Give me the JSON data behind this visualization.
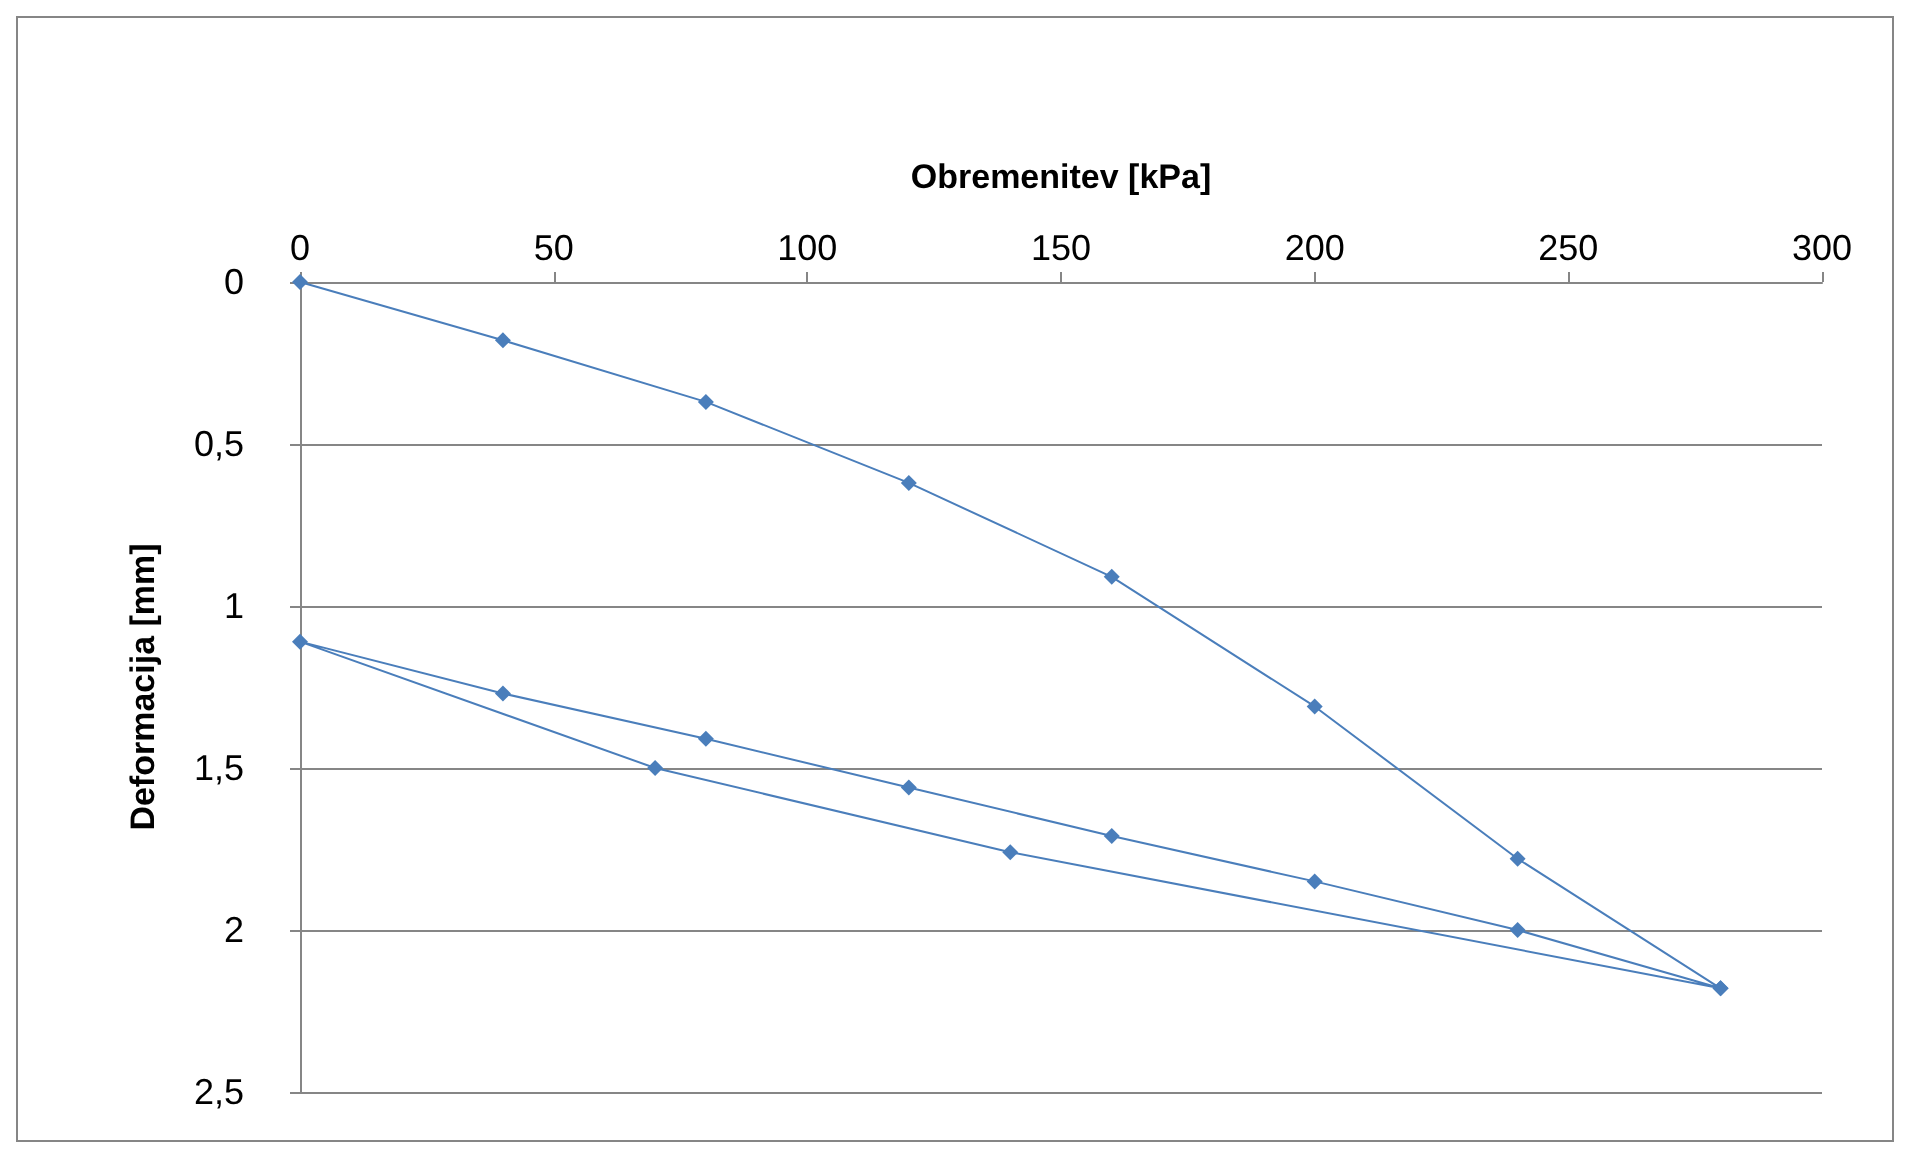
{
  "chart_data": {
    "type": "line",
    "xlabel": "Obremenitev [kPa]",
    "ylabel": "Deformacija [mm]",
    "x": [
      0,
      40,
      80,
      120,
      160,
      200,
      240,
      280,
      240,
      200,
      160,
      120,
      80,
      40,
      0,
      70,
      140,
      280
    ],
    "series": [
      {
        "color": "#4a7ebb",
        "values": [
          0,
          0.18,
          0.37,
          0.62,
          0.91,
          1.31,
          1.78,
          2.18,
          2.0,
          1.85,
          1.71,
          1.56,
          1.41,
          1.27,
          1.11,
          1.5,
          1.76,
          2.18
        ]
      }
    ],
    "xlim": [
      0,
      300
    ],
    "xticks": [
      0,
      50,
      100,
      150,
      200,
      250,
      300
    ],
    "ylim": [
      2.5,
      0
    ],
    "yticks": [
      0,
      {
        "value": 0.5,
        "label": "0,5"
      },
      1,
      {
        "value": 1.5,
        "label": "1,5"
      },
      2,
      {
        "value": 2.5,
        "label": "2,5"
      }
    ],
    "grid": "y",
    "marker": "diamond",
    "line_style": "solid"
  }
}
